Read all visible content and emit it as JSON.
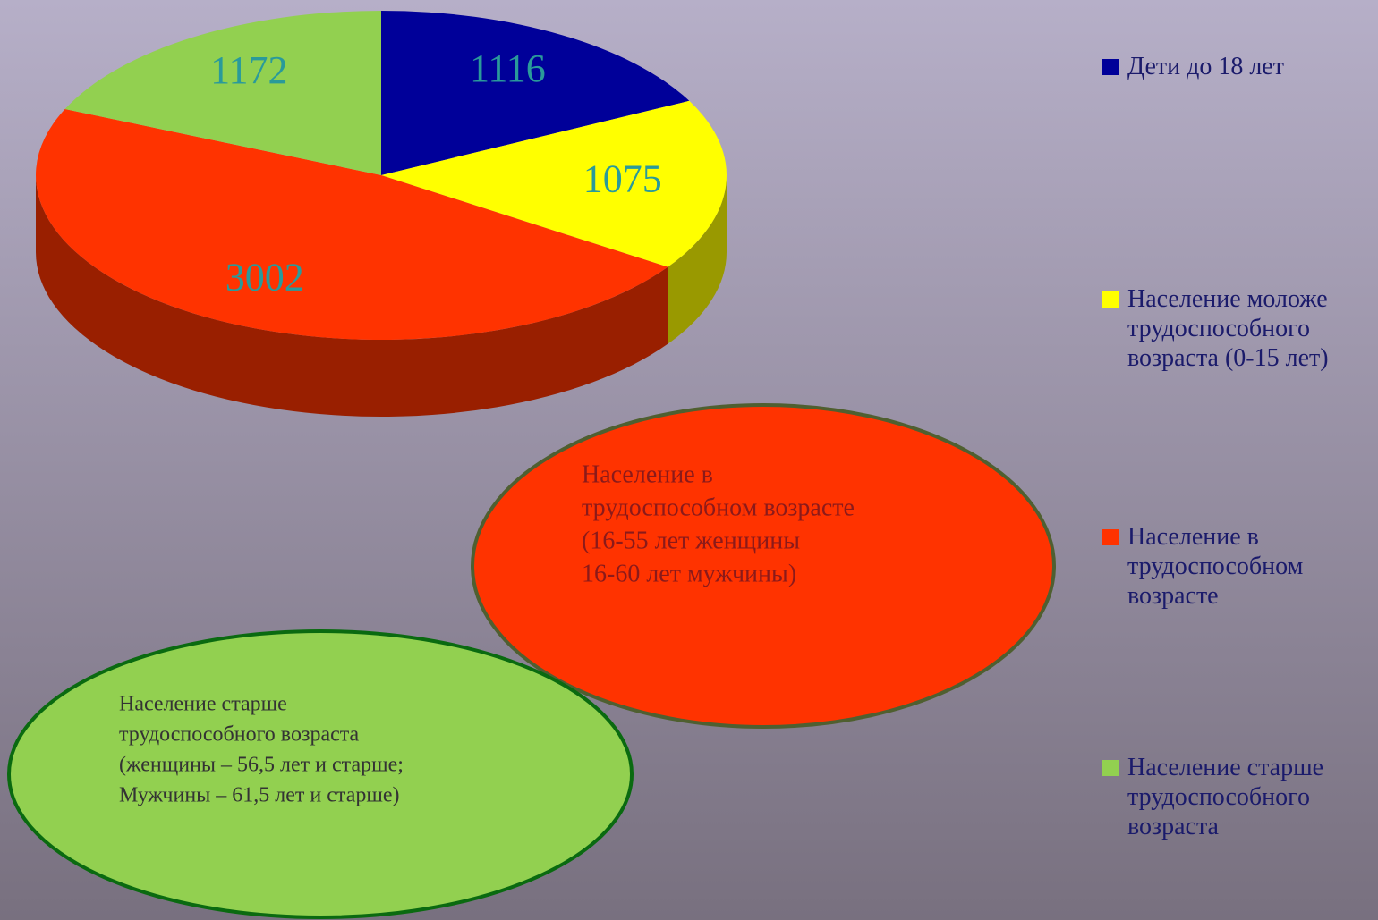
{
  "chart_data": {
    "type": "pie",
    "categories": [
      "Дети до 18 лет",
      "Население моложе трудоспособного возраста (0-15 лет)",
      "Население в трудоспособном возрасте",
      "Население старше трудоспособного возраста"
    ],
    "values": [
      1116,
      1075,
      3002,
      1172
    ],
    "colors": [
      "#000099",
      "#ffff00",
      "#ff3300",
      "#92d050"
    ],
    "legend": "right",
    "annotations": [
      {
        "lines": [
          "Население в",
          "трудоспособном возрасте",
          "(16-55 лет женщины",
          "16-60 лет мужчины)"
        ],
        "color": "#ff3300"
      },
      {
        "lines": [
          "Население старше",
          "трудоспособного возраста",
          "(женщины – 56,5 лет и старше;",
          "Мужчины – 61,5 лет и старше)"
        ],
        "color": "#92d050"
      }
    ]
  }
}
